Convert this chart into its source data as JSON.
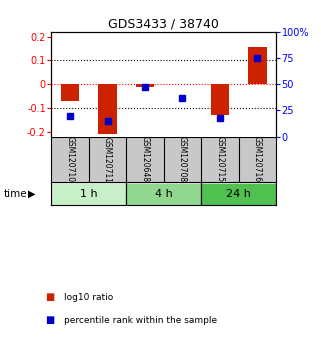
{
  "title": "GDS3433 / 38740",
  "samples": [
    "GSM120710",
    "GSM120711",
    "GSM120648",
    "GSM120708",
    "GSM120715",
    "GSM120716"
  ],
  "log10_ratio": [
    -0.07,
    -0.21,
    -0.012,
    0.0,
    -0.13,
    0.155
  ],
  "percentile_rank": [
    20,
    15,
    47,
    37,
    18,
    75
  ],
  "groups": [
    {
      "label": "1 h",
      "indices": [
        0,
        1
      ],
      "color": "#c8f0c8"
    },
    {
      "label": "4 h",
      "indices": [
        2,
        3
      ],
      "color": "#90d890"
    },
    {
      "label": "24 h",
      "indices": [
        4,
        5
      ],
      "color": "#50c050"
    }
  ],
  "bar_color": "#cc2200",
  "dot_color": "#0000cc",
  "ylim_left": [
    -0.22,
    0.22
  ],
  "ylim_right": [
    0,
    100
  ],
  "yticks_left": [
    -0.2,
    -0.1,
    0,
    0.1,
    0.2
  ],
  "yticks_right": [
    0,
    25,
    50,
    75,
    100
  ],
  "ytick_labels_left": [
    "-0.2",
    "-0.1",
    "0",
    "0.1",
    "0.2"
  ],
  "ytick_labels_right": [
    "0",
    "25",
    "50",
    "75",
    "100%"
  ],
  "hlines_black": [
    -0.1,
    0.1
  ],
  "hline_red": 0.0,
  "bar_width": 0.5,
  "sample_box_color": "#c8c8c8",
  "legend_items": [
    {
      "label": "log10 ratio",
      "color": "#cc2200"
    },
    {
      "label": "percentile rank within the sample",
      "color": "#0000cc"
    }
  ],
  "time_label": "time"
}
